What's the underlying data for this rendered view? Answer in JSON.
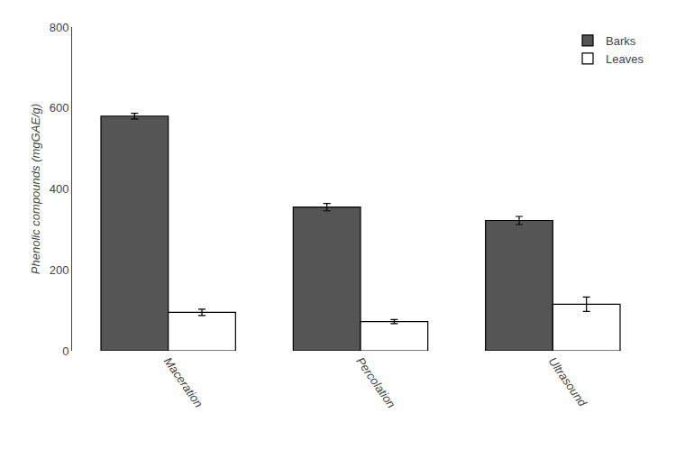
{
  "chart_data": {
    "type": "bar",
    "categories": [
      "Maceration",
      "Percolation",
      "Ultrasound"
    ],
    "series": [
      {
        "name": "Barks",
        "color": "#555555",
        "values": [
          580,
          355,
          322
        ],
        "errors": [
          7,
          9,
          10
        ]
      },
      {
        "name": "Leaves",
        "color": "#ffffff",
        "values": [
          95,
          72,
          115
        ],
        "errors": [
          8,
          5,
          18
        ]
      }
    ],
    "ylabel": "Phenolic compounds (mgGAE/g)",
    "ylim": [
      0,
      800
    ],
    "yticks": [
      0,
      200,
      400,
      600,
      800
    ],
    "legend": "upper right",
    "grid": false
  }
}
